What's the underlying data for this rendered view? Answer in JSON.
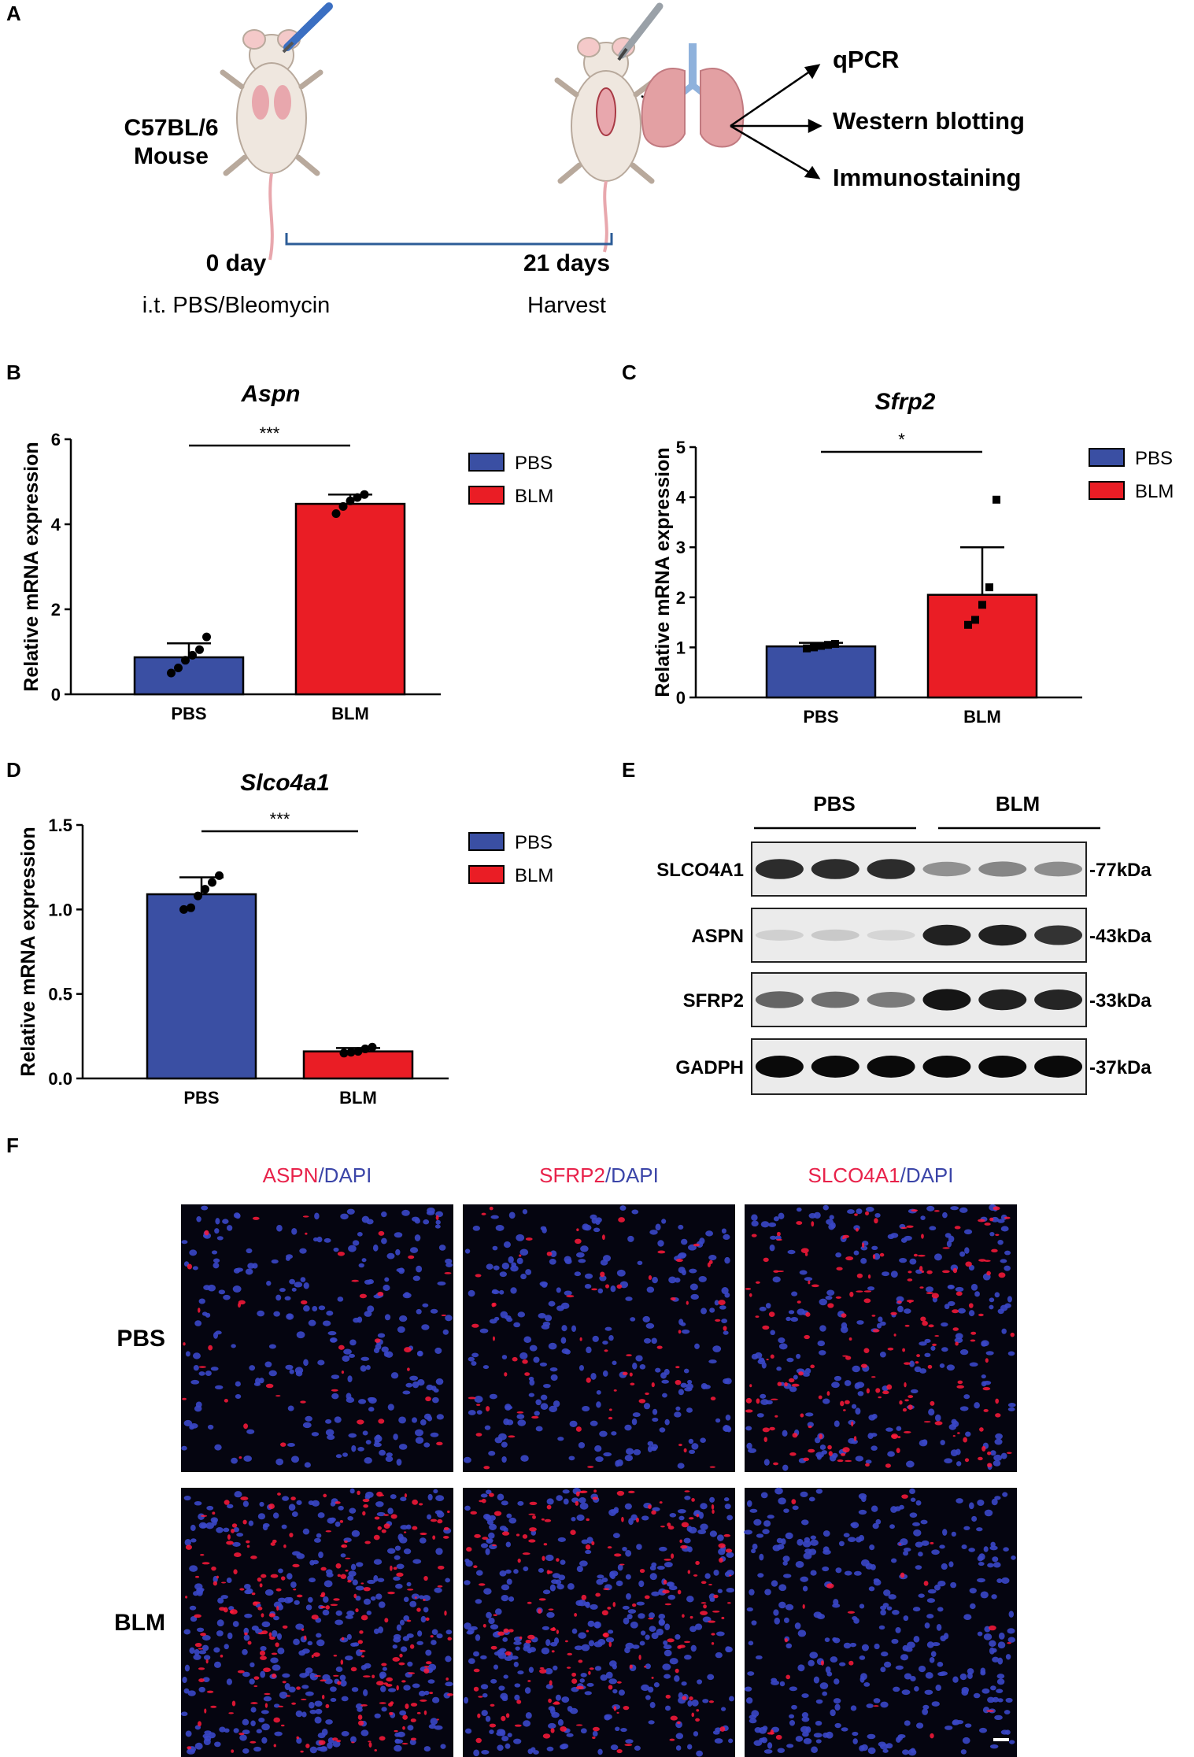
{
  "panels": {
    "a": "A",
    "b": "B",
    "c": "C",
    "d": "D",
    "e": "E",
    "f": "F"
  },
  "schematic": {
    "strain_line1": "C57BL/6",
    "strain_line2": "Mouse",
    "start_day": "0 day",
    "start_treatment": "i.t. PBS/Bleomycin",
    "end_day": "21 days",
    "end_action": "Harvest",
    "assays": [
      "qPCR",
      "Western blotting",
      "Immunostaining"
    ]
  },
  "colors": {
    "pbs": "#3a4fa3",
    "blm": "#ea1d25",
    "if_red": "#e8224a",
    "if_blue": "#3b45a8"
  },
  "chart_data": [
    {
      "type": "bar",
      "panel": "B",
      "title": "Aspn",
      "ylabel": "Relative mRNA expression",
      "categories": [
        "PBS",
        "BLM"
      ],
      "values": [
        0.87,
        4.48
      ],
      "errors": [
        0.33,
        0.22
      ],
      "points": [
        [
          0.5,
          0.62,
          0.8,
          0.92,
          1.05,
          1.35
        ],
        [
          4.25,
          4.42,
          4.55,
          4.63,
          4.7
        ]
      ],
      "point_shape": "circle",
      "ylim": [
        0,
        6
      ],
      "yticks": [
        0,
        2,
        4,
        6
      ],
      "significance": "***",
      "legend": [
        "PBS",
        "BLM"
      ]
    },
    {
      "type": "bar",
      "panel": "C",
      "title": "Sfrp2",
      "ylabel": "Relative mRNA expression",
      "categories": [
        "PBS",
        "BLM"
      ],
      "values": [
        1.02,
        2.05
      ],
      "errors": [
        0.07,
        0.95
      ],
      "points": [
        [
          0.98,
          1.0,
          1.03,
          1.05,
          1.07
        ],
        [
          1.45,
          1.55,
          1.85,
          2.2,
          3.95
        ]
      ],
      "point_shape": "square",
      "ylim": [
        0,
        5
      ],
      "yticks": [
        0,
        1,
        2,
        3,
        4,
        5
      ],
      "significance": "*",
      "legend": [
        "PBS",
        "BLM"
      ]
    },
    {
      "type": "bar",
      "panel": "D",
      "title": "Slco4a1",
      "ylabel": "Relative mRNA expression",
      "categories": [
        "PBS",
        "BLM"
      ],
      "values": [
        1.09,
        0.16
      ],
      "errors": [
        0.1,
        0.02
      ],
      "points": [
        [
          1.0,
          1.01,
          1.08,
          1.12,
          1.16,
          1.2
        ],
        [
          0.15,
          0.155,
          0.16,
          0.175,
          0.185
        ]
      ],
      "point_shape": "circle",
      "ylim": [
        0,
        1.5
      ],
      "yticks": [
        "0.0",
        "0.5",
        "1.0",
        "1.5"
      ],
      "significance": "***",
      "legend": [
        "PBS",
        "BLM"
      ]
    }
  ],
  "western": {
    "groups": [
      "PBS",
      "BLM"
    ],
    "rows": [
      {
        "name": "SLCO4A1",
        "size": "-77kDa",
        "intensity": [
          0.85,
          0.85,
          0.85,
          0.4,
          0.45,
          0.42
        ]
      },
      {
        "name": "ASPN",
        "size": "-43kDa",
        "intensity": [
          0.12,
          0.15,
          0.1,
          0.9,
          0.9,
          0.82
        ]
      },
      {
        "name": "SFRP2",
        "size": "-33kDa",
        "intensity": [
          0.6,
          0.55,
          0.5,
          0.95,
          0.9,
          0.88
        ]
      },
      {
        "name": "GADPH",
        "size": "-37kDa",
        "intensity": [
          1.0,
          1.0,
          1.0,
          1.0,
          1.0,
          1.0
        ]
      }
    ]
  },
  "immuno": {
    "columns": [
      {
        "marker": "ASPN",
        "sep": "/",
        "counter": "DAPI"
      },
      {
        "marker": "SFRP2",
        "sep": "/",
        "counter": "DAPI"
      },
      {
        "marker": "SLCO4A1",
        "sep": "/",
        "counter": "DAPI"
      }
    ],
    "rows": [
      "PBS",
      "BLM"
    ],
    "red_level": [
      [
        0.15,
        0.25,
        0.7
      ],
      [
        0.9,
        0.7,
        0.08
      ]
    ]
  }
}
